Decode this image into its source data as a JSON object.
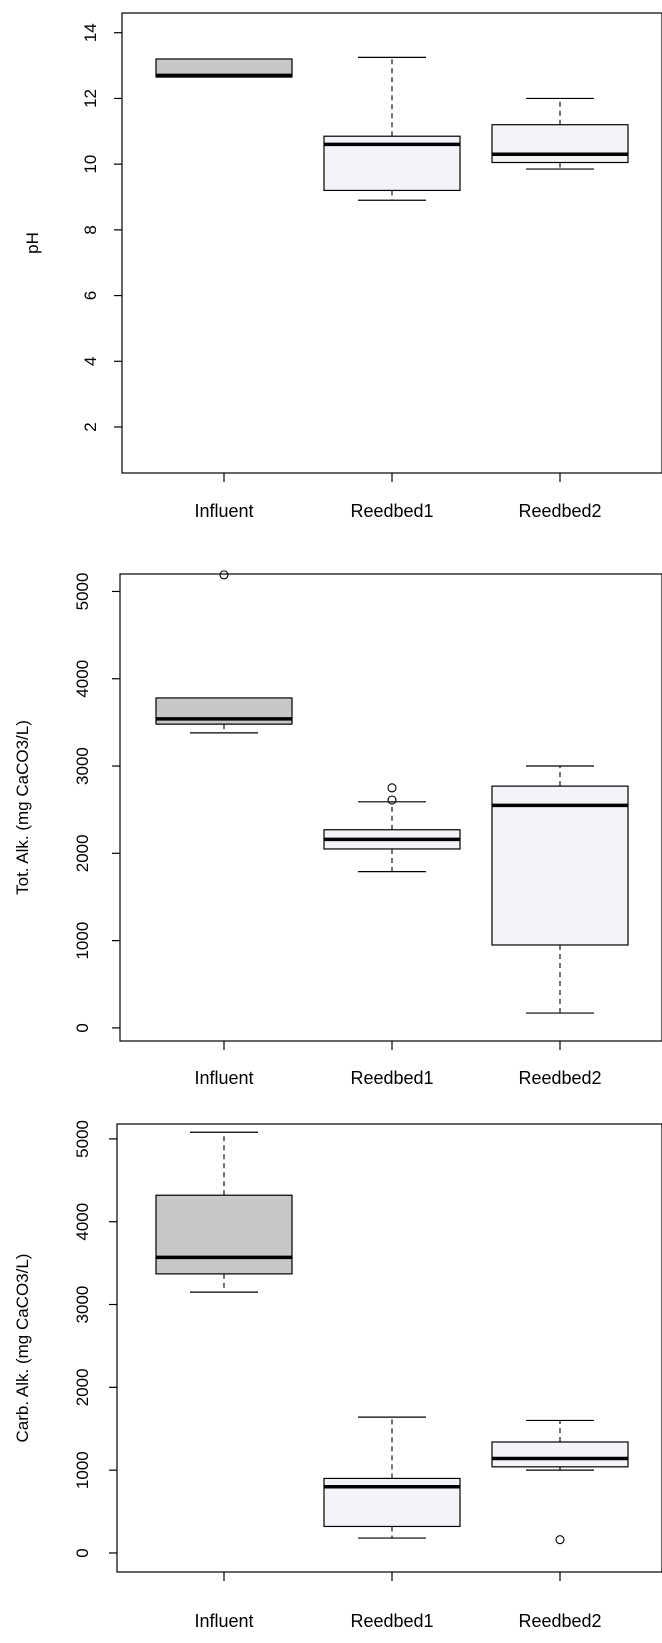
{
  "chart_data": [
    {
      "type": "boxplot",
      "ylabel": "pH",
      "xlabel": "",
      "ylim": [
        0.6,
        14.6
      ],
      "y_ticks": [
        2,
        4,
        6,
        8,
        10,
        12,
        14
      ],
      "categories": [
        "Influent",
        "Reedbed1",
        "Reedbed2"
      ],
      "boxes": [
        {
          "whisker_low": 12.65,
          "q1": 12.65,
          "median": 12.7,
          "q3": 13.2,
          "whisker_high": 13.2,
          "outliers": []
        },
        {
          "whisker_low": 8.9,
          "q1": 9.2,
          "median": 10.6,
          "q3": 10.85,
          "whisker_high": 13.25,
          "outliers": []
        },
        {
          "whisker_low": 9.85,
          "q1": 10.05,
          "median": 10.3,
          "q3": 11.2,
          "whisker_high": 12.0,
          "outliers": []
        }
      ],
      "box_colors": [
        "#c8c8c8",
        "#f3f3f8",
        "#f3f3f8"
      ],
      "grid": false
    },
    {
      "type": "boxplot",
      "ylabel": "Tot. Alk. (mg CaCO3/L)",
      "xlabel": "",
      "ylim": [
        -150,
        5200
      ],
      "y_ticks": [
        0,
        1000,
        2000,
        3000,
        4000,
        5000
      ],
      "categories": [
        "Influent",
        "Reedbed1",
        "Reedbed2"
      ],
      "boxes": [
        {
          "whisker_low": 3380,
          "q1": 3480,
          "median": 3540,
          "q3": 3780,
          "whisker_high": 3780,
          "outliers": [
            5190
          ]
        },
        {
          "whisker_low": 1790,
          "q1": 2050,
          "median": 2160,
          "q3": 2270,
          "whisker_high": 2590,
          "outliers": [
            2610,
            2750
          ]
        },
        {
          "whisker_low": 170,
          "q1": 950,
          "median": 2550,
          "q3": 2770,
          "whisker_high": 3000,
          "outliers": []
        }
      ],
      "box_colors": [
        "#c8c8c8",
        "#f3f3f8",
        "#f3f3f8"
      ],
      "grid": false
    },
    {
      "type": "boxplot",
      "ylabel": "Carb. Alk. (mg CaCO3/L)",
      "xlabel": "",
      "ylim": [
        -230,
        5180
      ],
      "y_ticks": [
        0,
        1000,
        2000,
        3000,
        4000,
        5000
      ],
      "categories": [
        "Influent",
        "Reedbed1",
        "Reedbed2"
      ],
      "boxes": [
        {
          "whisker_low": 3150,
          "q1": 3370,
          "median": 3570,
          "q3": 4320,
          "whisker_high": 5080,
          "outliers": []
        },
        {
          "whisker_low": 180,
          "q1": 320,
          "median": 800,
          "q3": 900,
          "whisker_high": 1640,
          "outliers": []
        },
        {
          "whisker_low": 1000,
          "q1": 1040,
          "median": 1140,
          "q3": 1340,
          "whisker_high": 1600,
          "outliers": [
            160
          ]
        }
      ],
      "box_colors": [
        "#c8c8c8",
        "#f3f3f8",
        "#f3f3f8"
      ],
      "grid": false
    }
  ]
}
